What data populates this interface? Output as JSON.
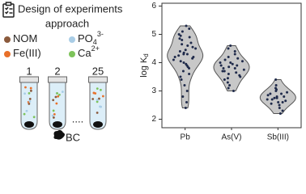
{
  "diagram": {
    "title": [
      "Design of experiments",
      "approach"
    ],
    "legend_items": [
      {
        "label": "NOM",
        "color": "#8b5a3c"
      },
      {
        "label": "PO",
        "sub": "4",
        "sup": "3-",
        "color": "#a9cde6"
      },
      {
        "label": "Fe(III)",
        "color": "#e8702a"
      },
      {
        "label": "Ca",
        "sup": "2+",
        "color": "#7dc35a"
      }
    ],
    "tubes": [
      "1",
      "2",
      "25"
    ],
    "ellipsis": "....",
    "adsorbent": "BC"
  },
  "chart_data": {
    "type": "violin",
    "y_label": "log K",
    "y_label_sub": "d",
    "categories": [
      "Pb",
      "As(V)",
      "Sb(III)"
    ],
    "violin_color": "#c8c8c8",
    "point_color": "#1f2a4a",
    "series": [
      {
        "name": "Pb",
        "values": [
          5.3,
          5.2,
          5.1,
          5.0,
          4.95,
          4.9,
          4.85,
          4.8,
          4.7,
          4.65,
          4.6,
          4.55,
          4.5,
          4.45,
          4.4,
          4.35,
          4.3,
          4.3,
          4.25,
          4.2,
          4.2,
          4.15,
          4.1,
          4.05,
          4.0,
          3.95,
          3.9,
          3.85,
          3.8,
          3.7,
          3.6,
          3.5,
          3.4,
          3.2,
          3.0,
          2.8,
          2.6,
          2.4
        ]
      },
      {
        "name": "As(V)",
        "values": [
          4.6,
          4.5,
          4.4,
          4.3,
          4.2,
          4.15,
          4.1,
          4.05,
          4.0,
          4.0,
          3.95,
          3.9,
          3.9,
          3.85,
          3.8,
          3.8,
          3.75,
          3.7,
          3.7,
          3.65,
          3.6,
          3.55,
          3.5,
          3.45,
          3.4,
          3.3,
          3.2,
          3.1,
          3.0
        ]
      },
      {
        "name": "Sb(III)",
        "values": [
          3.4,
          3.2,
          3.1,
          3.05,
          3.0,
          2.95,
          2.9,
          2.9,
          2.85,
          2.8,
          2.8,
          2.75,
          2.75,
          2.7,
          2.7,
          2.65,
          2.6,
          2.6,
          2.55,
          2.5,
          2.4,
          2.3,
          2.2
        ]
      }
    ],
    "ylim": [
      1.7,
      6.1
    ],
    "yticks": [
      2,
      3,
      4,
      5,
      6
    ]
  }
}
